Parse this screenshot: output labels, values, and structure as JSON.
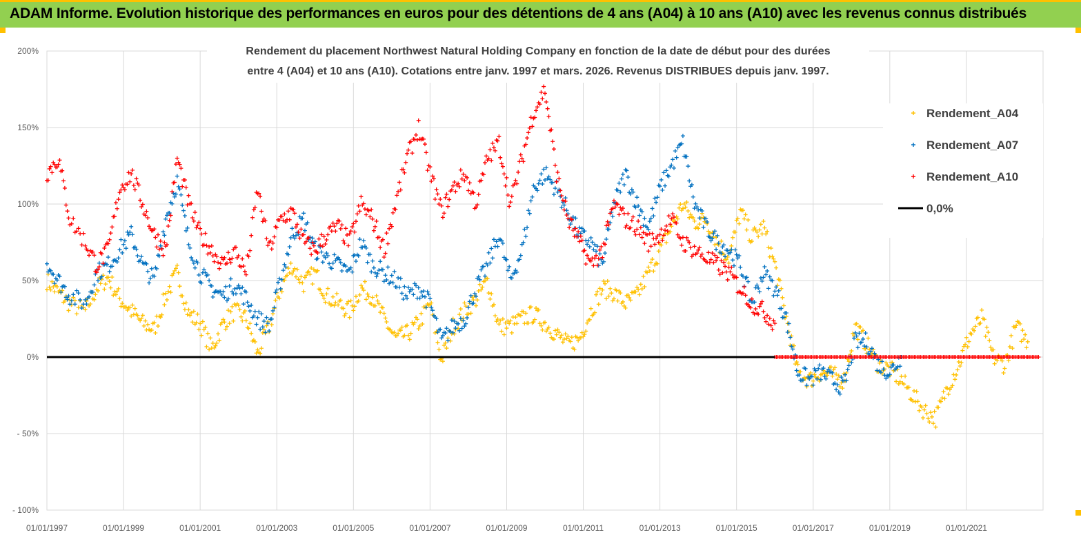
{
  "banner": {
    "title": "ADAM Informe. Evolution historique des performances en euros pour des détentions de 4 ans (A04) à 10 ans (A10) avec les revenus connus distribués"
  },
  "colors": {
    "banner_bg": "#92d050",
    "accent_border": "#ffc000",
    "a04": "#ffc000",
    "a07": "#0070c0",
    "a10": "#ff0000",
    "zero_line": "#000000",
    "grid": "#d9d9d9"
  },
  "chart_data": {
    "type": "scatter",
    "title_lines": [
      "Rendement du placement Northwest Natural Holding Company en  fonction de la date de début pour des durées",
      "entre 4 (A04) et 10 ans (A10).  Cotations entre janv. 1997 et mars. 2026. Revenus DISTRIBUES depuis janv. 1997."
    ],
    "y_ticks": [
      {
        "value": 200,
        "label": "200%"
      },
      {
        "value": 150,
        "label": "150%"
      },
      {
        "value": 100,
        "label": "100%"
      },
      {
        "value": 50,
        "label": "50%"
      },
      {
        "value": 0,
        "label": "0%"
      },
      {
        "value": -50,
        "label": "- 50%"
      },
      {
        "value": -100,
        "label": "- 100%"
      }
    ],
    "ylim": [
      -100,
      200
    ],
    "x_ticks": [
      {
        "value": 1997,
        "label": "01/01/1997"
      },
      {
        "value": 1999,
        "label": "01/01/1999"
      },
      {
        "value": 2001,
        "label": "01/01/2001"
      },
      {
        "value": 2003,
        "label": "01/01/2003"
      },
      {
        "value": 2005,
        "label": "01/01/2005"
      },
      {
        "value": 2007,
        "label": "01/01/2007"
      },
      {
        "value": 2009,
        "label": "01/01/2009"
      },
      {
        "value": 2011,
        "label": "01/01/2011"
      },
      {
        "value": 2013,
        "label": "01/01/2013"
      },
      {
        "value": 2015,
        "label": "01/01/2015"
      },
      {
        "value": 2017,
        "label": "01/01/2017"
      },
      {
        "value": 2019,
        "label": "01/01/2019"
      },
      {
        "value": 2021,
        "label": "01/01/2021"
      }
    ],
    "xlim": [
      1997,
      2023
    ],
    "grid": true,
    "legend_position": "right",
    "legend": [
      {
        "label": "Rendement_A04",
        "key": "a04",
        "marker": "+"
      },
      {
        "label": "Rendement_A07",
        "key": "a07",
        "marker": "+"
      },
      {
        "label": "Rendement_A10",
        "key": "a10",
        "marker": "+"
      },
      {
        "label": "0,0%",
        "key": "zero",
        "marker": "line"
      }
    ],
    "series": [
      {
        "name": "Rendement_A04",
        "key": "a04",
        "x": [
          1997.0,
          1997.3,
          1997.6,
          1998.0,
          1998.3,
          1998.6,
          1998.9,
          1999.2,
          1999.5,
          1999.8,
          2000.1,
          2000.4,
          2000.7,
          2001.0,
          2001.3,
          2001.6,
          2001.9,
          2002.2,
          2002.5,
          2002.8,
          2003.1,
          2003.4,
          2003.7,
          2004.0,
          2004.3,
          2004.6,
          2004.9,
          2005.2,
          2005.5,
          2005.8,
          2006.1,
          2006.4,
          2006.7,
          2007.0,
          2007.3,
          2007.6,
          2007.9,
          2008.2,
          2008.5,
          2008.8,
          2009.1,
          2009.4,
          2009.7,
          2010.0,
          2010.3,
          2010.6,
          2010.9,
          2011.2,
          2011.5,
          2011.8,
          2012.1,
          2012.4,
          2012.7,
          2013.0,
          2013.3,
          2013.6,
          2013.9,
          2014.2,
          2014.5,
          2014.8,
          2015.1,
          2015.4,
          2015.7,
          2016.0,
          2016.3,
          2016.6,
          2016.9,
          2017.2,
          2017.5,
          2017.8,
          2018.1,
          2018.4,
          2018.7,
          2019.0,
          2019.3,
          2019.6,
          2019.9,
          2020.2,
          2020.5,
          2020.8,
          2021.1,
          2021.4,
          2021.7,
          2022.0,
          2022.3,
          2022.6
        ],
        "y": [
          50,
          42,
          35,
          30,
          45,
          52,
          38,
          30,
          22,
          18,
          40,
          55,
          28,
          22,
          5,
          22,
          30,
          25,
          2,
          20,
          45,
          60,
          48,
          55,
          40,
          35,
          30,
          45,
          40,
          25,
          12,
          15,
          22,
          35,
          -2,
          20,
          30,
          38,
          50,
          20,
          20,
          25,
          28,
          22,
          15,
          8,
          12,
          30,
          45,
          42,
          35,
          40,
          55,
          70,
          85,
          100,
          88,
          90,
          75,
          65,
          95,
          78,
          85,
          60,
          25,
          -10,
          -15,
          -10,
          -12,
          -15,
          20,
          8,
          -5,
          -8,
          -15,
          -25,
          -35,
          -40,
          -20,
          -5,
          15,
          25,
          0,
          -5,
          20,
          10
        ]
      },
      {
        "name": "Rendement_A07",
        "key": "a07",
        "x": [
          1997.0,
          1997.3,
          1997.6,
          1998.0,
          1998.3,
          1998.6,
          1998.9,
          1999.2,
          1999.5,
          1999.8,
          2000.1,
          2000.4,
          2000.7,
          2001.0,
          2001.3,
          2001.6,
          2001.9,
          2002.2,
          2002.5,
          2002.8,
          2003.1,
          2003.4,
          2003.7,
          2004.0,
          2004.3,
          2004.6,
          2004.9,
          2005.2,
          2005.5,
          2005.8,
          2006.1,
          2006.4,
          2006.7,
          2007.0,
          2007.3,
          2007.6,
          2007.9,
          2008.2,
          2008.5,
          2008.8,
          2009.1,
          2009.4,
          2009.7,
          2010.0,
          2010.3,
          2010.6,
          2010.9,
          2011.2,
          2011.5,
          2011.8,
          2012.1,
          2012.4,
          2012.7,
          2013.0,
          2013.3,
          2013.6,
          2013.9,
          2014.2,
          2014.5,
          2014.8,
          2015.1,
          2015.4,
          2015.7,
          2016.0,
          2016.3,
          2016.6,
          2016.9,
          2017.2,
          2017.5,
          2017.8,
          2018.1,
          2018.4,
          2018.7,
          2019.0,
          2019.3
        ],
        "y": [
          62,
          50,
          40,
          35,
          55,
          60,
          70,
          80,
          60,
          50,
          90,
          115,
          75,
          55,
          45,
          40,
          48,
          38,
          25,
          20,
          50,
          80,
          90,
          70,
          65,
          60,
          55,
          75,
          60,
          55,
          50,
          40,
          45,
          35,
          10,
          20,
          25,
          45,
          60,
          80,
          50,
          70,
          110,
          120,
          110,
          95,
          80,
          75,
          60,
          100,
          120,
          100,
          85,
          110,
          125,
          140,
          100,
          85,
          75,
          70,
          60,
          35,
          55,
          45,
          25,
          -10,
          -15,
          -10,
          -15,
          -20,
          10,
          10,
          -5,
          -10,
          0
        ]
      },
      {
        "name": "Rendement_A10",
        "key": "a10",
        "x": [
          1997.0,
          1997.3,
          1997.6,
          1998.0,
          1998.3,
          1998.6,
          1998.9,
          1999.2,
          1999.5,
          1999.8,
          2000.1,
          2000.4,
          2000.7,
          2001.0,
          2001.3,
          2001.6,
          2001.9,
          2002.2,
          2002.5,
          2002.8,
          2003.1,
          2003.4,
          2003.7,
          2004.0,
          2004.3,
          2004.6,
          2004.9,
          2005.2,
          2005.5,
          2005.8,
          2006.1,
          2006.4,
          2006.7,
          2007.0,
          2007.3,
          2007.6,
          2007.9,
          2008.2,
          2008.5,
          2008.8,
          2009.1,
          2009.4,
          2009.7,
          2010.0,
          2010.3,
          2010.6,
          2010.9,
          2011.2,
          2011.5,
          2011.8,
          2012.1,
          2012.4,
          2012.7,
          2013.0,
          2013.3,
          2013.6,
          2013.9,
          2014.2,
          2014.5,
          2014.8,
          2015.1,
          2015.4,
          2015.7,
          2016.0
        ],
        "y": [
          120,
          130,
          90,
          75,
          60,
          70,
          110,
          120,
          100,
          80,
          70,
          130,
          100,
          80,
          70,
          60,
          70,
          55,
          110,
          70,
          90,
          95,
          75,
          70,
          80,
          85,
          75,
          100,
          90,
          70,
          100,
          130,
          150,
          120,
          95,
          110,
          120,
          100,
          130,
          140,
          100,
          130,
          160,
          175,
          120,
          90,
          75,
          60,
          70,
          100,
          90,
          85,
          75,
          80,
          90,
          75,
          70,
          65,
          60,
          55,
          45,
          35,
          30,
          22
        ]
      },
      {
        "name": "0,0%",
        "key": "zero",
        "x": [
          1997,
          2023
        ],
        "y": [
          0,
          0
        ]
      }
    ]
  }
}
